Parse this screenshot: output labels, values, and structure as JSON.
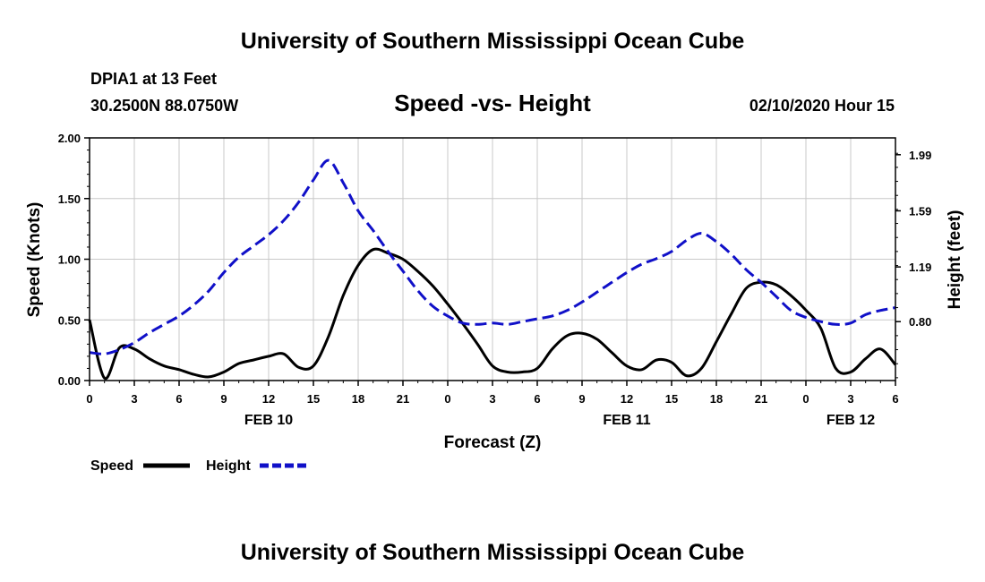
{
  "header": {
    "top_title": "University of Southern Mississippi Ocean Cube",
    "bottom_title": "University of Southern Mississippi Ocean Cube",
    "station": "DPIA1 at 13 Feet",
    "coords": "30.2500N 88.0750W",
    "date": "02/10/2020 Hour 15"
  },
  "colors": {
    "speed": "#000000",
    "height": "#1010c8",
    "grid": "#c8c8c8",
    "axis": "#000000"
  },
  "chart_data": {
    "type": "line",
    "title": "Speed -vs- Height",
    "xlabel": "Forecast (Z)",
    "ylabel_left": "Speed (Knots)",
    "ylabel_right": "Height (feet)",
    "xlim": [
      0,
      54
    ],
    "ylim_left": [
      0,
      2.0
    ],
    "ylim_right": [
      0.38,
      2.11
    ],
    "grid": true,
    "x_ticks": [
      0,
      3,
      6,
      9,
      12,
      15,
      18,
      21,
      24,
      27,
      30,
      33,
      36,
      39,
      42,
      45,
      48,
      51,
      54
    ],
    "x_tick_labels": [
      "0",
      "3",
      "6",
      "9",
      "12",
      "15",
      "18",
      "21",
      "0",
      "3",
      "6",
      "9",
      "12",
      "15",
      "18",
      "21",
      "0",
      "3",
      "6"
    ],
    "y_left_ticks": [
      0,
      0.5,
      1.0,
      1.5,
      2.0
    ],
    "y_left_tick_labels": [
      "0.00",
      "0.50",
      "1.00",
      "1.50",
      "2.00"
    ],
    "y_right_ticks": [
      0.8,
      1.19,
      1.59,
      1.99
    ],
    "y_right_tick_labels": [
      "0.80",
      "1.19",
      "1.59",
      "1.99"
    ],
    "date_labels": [
      {
        "label": "FEB 10",
        "x": 12
      },
      {
        "label": "FEB 11",
        "x": 36
      },
      {
        "label": "FEB 12",
        "x": 51
      }
    ],
    "legend": [
      {
        "name": "Speed",
        "style": "solid"
      },
      {
        "name": "Height",
        "style": "dashed"
      }
    ],
    "series": [
      {
        "name": "Speed",
        "axis": "left",
        "style": "solid",
        "x": [
          0,
          1,
          2,
          3,
          4,
          5,
          6,
          7,
          8,
          9,
          10,
          11,
          12,
          13,
          14,
          15,
          16,
          17,
          18,
          19,
          20,
          21,
          22,
          23,
          24,
          25,
          26,
          27,
          28,
          29,
          30,
          31,
          32,
          33,
          34,
          35,
          36,
          37,
          38,
          39,
          40,
          41,
          42,
          43,
          44,
          45,
          46,
          47,
          48,
          49,
          50,
          51,
          52,
          53,
          54
        ],
        "values": [
          0.5,
          0.02,
          0.27,
          0.26,
          0.18,
          0.12,
          0.09,
          0.05,
          0.03,
          0.07,
          0.14,
          0.17,
          0.2,
          0.22,
          0.11,
          0.12,
          0.36,
          0.7,
          0.95,
          1.08,
          1.05,
          1.0,
          0.9,
          0.78,
          0.63,
          0.47,
          0.3,
          0.12,
          0.07,
          0.07,
          0.1,
          0.26,
          0.37,
          0.39,
          0.34,
          0.23,
          0.12,
          0.09,
          0.17,
          0.15,
          0.04,
          0.1,
          0.32,
          0.55,
          0.76,
          0.81,
          0.79,
          0.7,
          0.58,
          0.43,
          0.1,
          0.07,
          0.18,
          0.26,
          0.13
        ]
      },
      {
        "name": "Height",
        "axis": "right",
        "style": "dashed",
        "x": [
          0,
          1,
          2,
          3,
          4,
          5,
          6,
          7,
          8,
          9,
          10,
          11,
          12,
          13,
          14,
          15,
          16,
          17,
          18,
          19,
          20,
          21,
          22,
          23,
          24,
          25,
          26,
          27,
          28,
          29,
          30,
          31,
          32,
          33,
          34,
          35,
          36,
          37,
          38,
          39,
          40,
          41,
          42,
          43,
          44,
          45,
          46,
          47,
          48,
          49,
          50,
          51,
          52,
          53,
          54
        ],
        "values": [
          0.58,
          0.57,
          0.6,
          0.65,
          0.72,
          0.78,
          0.84,
          0.92,
          1.02,
          1.15,
          1.26,
          1.34,
          1.42,
          1.52,
          1.65,
          1.81,
          1.95,
          1.79,
          1.59,
          1.45,
          1.3,
          1.16,
          1.02,
          0.91,
          0.84,
          0.79,
          0.78,
          0.79,
          0.78,
          0.8,
          0.82,
          0.84,
          0.88,
          0.94,
          1.01,
          1.08,
          1.15,
          1.21,
          1.25,
          1.3,
          1.38,
          1.43,
          1.37,
          1.28,
          1.17,
          1.08,
          0.98,
          0.88,
          0.83,
          0.8,
          0.78,
          0.79,
          0.85,
          0.88,
          0.9
        ]
      }
    ]
  }
}
